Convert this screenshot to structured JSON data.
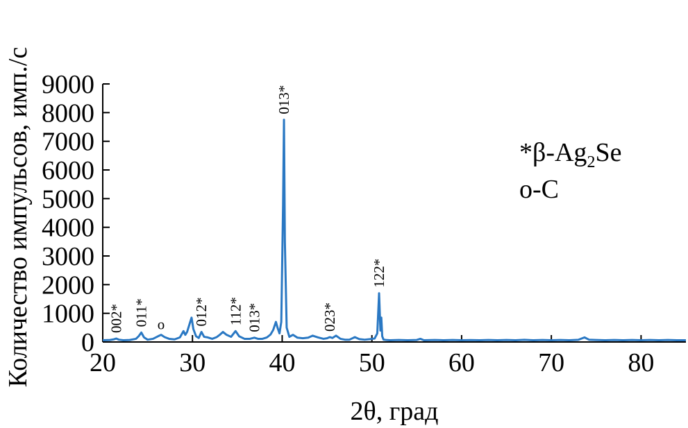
{
  "chart_data": {
    "type": "line",
    "title": "",
    "xlabel": "2θ, град",
    "ylabel": "Количество импульсов, имп./с",
    "xlim": [
      20,
      85
    ],
    "ylim": [
      0,
      9000
    ],
    "x_ticks": [
      20,
      30,
      40,
      50,
      60,
      70,
      80
    ],
    "y_ticks": [
      0,
      1000,
      2000,
      3000,
      4000,
      5000,
      6000,
      7000,
      8000,
      9000
    ],
    "grid": false,
    "legend_position": "top-right",
    "line_color": "#2a78c3",
    "legend": [
      {
        "symbol": "*",
        "text": "β-Ag",
        "sub": "2",
        "tail": "Se"
      },
      {
        "symbol": "o",
        "text": "-C",
        "sub": "",
        "tail": ""
      }
    ],
    "annotations": [
      {
        "label": "002*",
        "x": 21.5,
        "y": 120
      },
      {
        "label": "011*",
        "x": 24.3,
        "y": 330
      },
      {
        "label": "o",
        "x": 26.5,
        "y": 250
      },
      {
        "label": "012*",
        "x": 31.0,
        "y": 350
      },
      {
        "label": "112*",
        "x": 34.8,
        "y": 380
      },
      {
        "label": "013*",
        "x": 36.9,
        "y": 150
      },
      {
        "label": "013*",
        "x": 40.2,
        "y": 7750
      },
      {
        "label": "023*",
        "x": 45.3,
        "y": 170
      },
      {
        "label": "122*",
        "x": 50.8,
        "y": 1700
      }
    ],
    "series": [
      {
        "x": [
          20.0,
          20.8,
          21.2,
          21.5,
          21.8,
          22.3,
          23.0,
          23.7,
          24.0,
          24.3,
          24.6,
          25.0,
          25.6,
          26.1,
          26.5,
          26.9,
          27.4,
          28.0,
          28.6,
          29.0,
          29.2,
          29.4,
          29.7,
          29.9,
          30.1,
          30.4,
          30.7,
          31.0,
          31.3,
          31.7,
          32.2,
          32.7,
          33.0,
          33.4,
          33.8,
          34.3,
          34.8,
          35.2,
          35.8,
          36.4,
          36.9,
          37.3,
          37.8,
          38.3,
          38.7,
          39.0,
          39.3,
          39.5,
          39.7,
          39.9,
          40.1,
          40.2,
          40.3,
          40.5,
          40.8,
          41.2,
          41.7,
          42.3,
          42.9,
          43.4,
          44.0,
          44.6,
          45.0,
          45.3,
          45.6,
          46.0,
          46.5,
          47.0,
          47.5,
          48.1,
          48.6,
          49.2,
          49.8,
          50.3,
          50.6,
          50.8,
          50.95,
          51.05,
          51.15,
          51.3,
          51.6,
          52.0,
          53.0,
          54.0,
          55.0,
          55.4,
          55.8,
          57.0,
          58.0,
          59.0,
          60.0,
          61.0,
          62.0,
          63.0,
          64.0,
          65.0,
          66.0,
          67.0,
          68.0,
          69.0,
          70.0,
          71.0,
          72.0,
          73.0,
          73.7,
          74.2,
          75.0,
          76.0,
          77.0,
          78.0,
          79.0,
          80.0,
          81.0,
          82.0,
          83.0,
          84.0,
          85.0
        ],
        "y": [
          60,
          70,
          90,
          120,
          80,
          60,
          70,
          110,
          200,
          330,
          160,
          80,
          110,
          190,
          250,
          170,
          110,
          90,
          160,
          380,
          250,
          350,
          650,
          850,
          450,
          200,
          140,
          350,
          180,
          160,
          110,
          170,
          240,
          350,
          250,
          180,
          380,
          200,
          110,
          110,
          150,
          110,
          110,
          160,
          260,
          420,
          700,
          480,
          300,
          700,
          4800,
          7750,
          3500,
          500,
          180,
          250,
          150,
          130,
          150,
          220,
          160,
          110,
          130,
          170,
          140,
          220,
          110,
          80,
          80,
          170,
          100,
          80,
          100,
          120,
          300,
          1700,
          400,
          850,
          200,
          80,
          70,
          60,
          70,
          60,
          70,
          110,
          60,
          70,
          60,
          70,
          60,
          65,
          60,
          70,
          60,
          70,
          60,
          75,
          60,
          70,
          60,
          70,
          60,
          75,
          160,
          80,
          70,
          60,
          70,
          60,
          70,
          60,
          70,
          60,
          70,
          60,
          60
        ]
      }
    ]
  }
}
